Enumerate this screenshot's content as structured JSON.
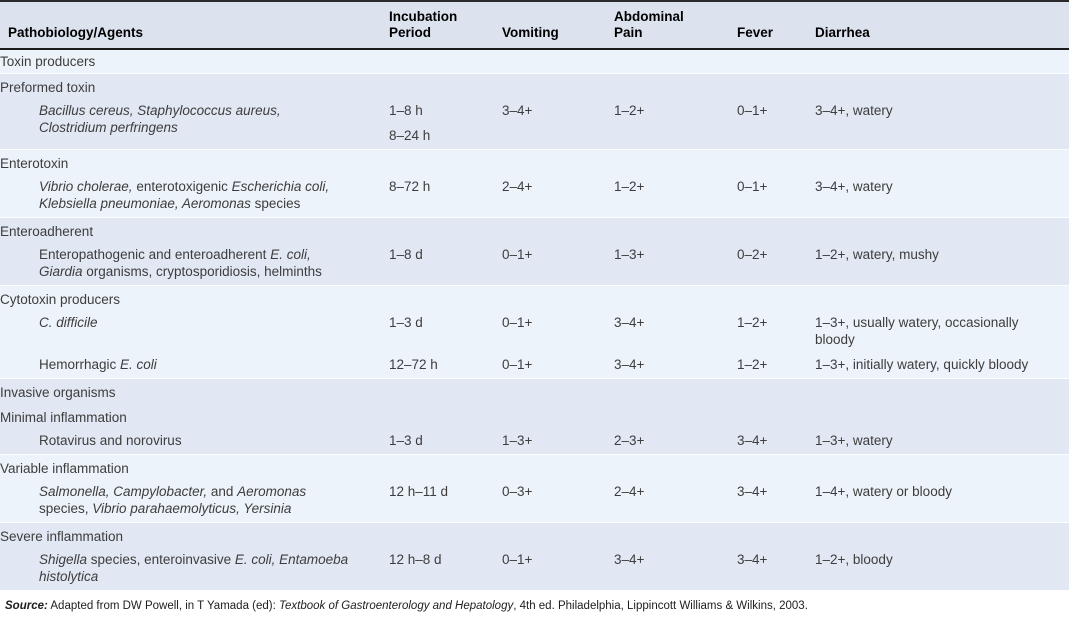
{
  "colors": {
    "band_light": "#edf3fa",
    "band_dark": "#e1e7f3",
    "header_bg": "#dce3ef",
    "rule": "#1b1b1b",
    "text": "#3d3d3d"
  },
  "columns": [
    {
      "key": "agent",
      "label": "Pathobiology/Agents"
    },
    {
      "key": "incubation",
      "label": "Incubation\nPeriod"
    },
    {
      "key": "vomiting",
      "label": "Vomiting"
    },
    {
      "key": "abdominal_pain",
      "label": "Abdominal\nPain"
    },
    {
      "key": "fever",
      "label": "Fever"
    },
    {
      "key": "diarrhea",
      "label": "Diarrhea"
    }
  ],
  "rows": [
    {
      "kind": "section",
      "level": 0,
      "band": "light",
      "band_start": true,
      "label": "Toxin producers"
    },
    {
      "kind": "section",
      "level": 1,
      "band": "dark",
      "band_start": true,
      "label": "Preformed toxin"
    },
    {
      "kind": "agent",
      "level": 2,
      "band": "dark",
      "band_start": false,
      "agent": [
        {
          "i": true,
          "t": "Bacillus cereus, Staphylococcus aureus,"
        },
        {
          "br": true
        },
        {
          "i": true,
          "t": "Clostridium perfringens"
        }
      ],
      "incubation": [
        "1–8 h",
        "8–24 h"
      ],
      "vomiting": "3–4+",
      "abdominal_pain": "1–2+",
      "fever": "0–1+",
      "diarrhea": "3–4+, watery"
    },
    {
      "kind": "section",
      "level": 1,
      "band": "light",
      "band_start": true,
      "label": "Enterotoxin"
    },
    {
      "kind": "agent",
      "level": 2,
      "band": "light",
      "band_start": false,
      "agent": [
        {
          "i": true,
          "t": "Vibrio cholerae,"
        },
        {
          "t": " enterotoxigenic "
        },
        {
          "i": true,
          "t": "Escherichia coli,"
        },
        {
          "br": true
        },
        {
          "i": true,
          "t": "Klebsiella pneumoniae, Aeromonas"
        },
        {
          "t": " species"
        }
      ],
      "incubation": [
        "8–72 h"
      ],
      "vomiting": "2–4+",
      "abdominal_pain": "1–2+",
      "fever": "0–1+",
      "diarrhea": "3–4+, watery"
    },
    {
      "kind": "section",
      "level": 1,
      "band": "dark",
      "band_start": true,
      "label": "Enteroadherent"
    },
    {
      "kind": "agent",
      "level": 2,
      "band": "dark",
      "band_start": false,
      "agent": [
        {
          "t": "Enteropathogenic and enteroadherent "
        },
        {
          "i": true,
          "t": "E. coli,"
        },
        {
          "br": true
        },
        {
          "i": true,
          "t": "Giardia"
        },
        {
          "t": " organisms, cryptosporidiosis, helminths"
        }
      ],
      "incubation": [
        "1–8 d"
      ],
      "vomiting": "0–1+",
      "abdominal_pain": "1–3+",
      "fever": "0–2+",
      "diarrhea": "1–2+, watery, mushy"
    },
    {
      "kind": "section",
      "level": 1,
      "band": "light",
      "band_start": true,
      "label": "Cytotoxin producers"
    },
    {
      "kind": "agent",
      "level": 2,
      "band": "light",
      "band_start": false,
      "agent": [
        {
          "i": true,
          "t": "C. difficile"
        }
      ],
      "incubation": [
        "1–3 d"
      ],
      "vomiting": "0–1+",
      "abdominal_pain": "3–4+",
      "fever": "1–2+",
      "diarrhea": "1–3+, usually watery, occasionally\nbloody"
    },
    {
      "kind": "agent",
      "level": 2,
      "band": "light",
      "band_start": false,
      "agent": [
        {
          "t": "Hemorrhagic "
        },
        {
          "i": true,
          "t": "E. coli"
        }
      ],
      "incubation": [
        "12–72 h"
      ],
      "vomiting": "0–1+",
      "abdominal_pain": "3–4+",
      "fever": "1–2+",
      "diarrhea": "1–3+, initially watery, quickly bloody"
    },
    {
      "kind": "section",
      "level": 1,
      "band": "dark",
      "band_start": true,
      "label": "Invasive organisms"
    },
    {
      "kind": "section",
      "level": 2,
      "band": "dark",
      "band_start": false,
      "label": "Minimal inflammation"
    },
    {
      "kind": "agent",
      "level": 2,
      "band": "dark",
      "band_start": false,
      "agent": [
        {
          "t": "Rotavirus and norovirus"
        }
      ],
      "incubation": [
        "1–3 d"
      ],
      "vomiting": "1–3+",
      "abdominal_pain": "2–3+",
      "fever": "3–4+",
      "diarrhea": "1–3+, watery"
    },
    {
      "kind": "section",
      "level": 1,
      "band": "light",
      "band_start": true,
      "label": "Variable inflammation"
    },
    {
      "kind": "agent",
      "level": 2,
      "band": "light",
      "band_start": false,
      "agent": [
        {
          "i": true,
          "t": "Salmonella, Campylobacter,"
        },
        {
          "t": " and "
        },
        {
          "i": true,
          "t": "Aeromonas"
        },
        {
          "br": true
        },
        {
          "t": "species, "
        },
        {
          "i": true,
          "t": "Vibrio parahaemolyticus, Yersinia"
        }
      ],
      "incubation": [
        "12 h–11 d"
      ],
      "vomiting": "0–3+",
      "abdominal_pain": "2–4+",
      "fever": "3–4+",
      "diarrhea": "1–4+, watery or bloody"
    },
    {
      "kind": "section",
      "level": 1,
      "band": "dark",
      "band_start": true,
      "label": "Severe inflammation"
    },
    {
      "kind": "agent",
      "level": 2,
      "band": "dark",
      "band_start": false,
      "agent": [
        {
          "i": true,
          "t": "Shigella"
        },
        {
          "t": " species, enteroinvasive "
        },
        {
          "i": true,
          "t": "E. coli, Entamoeba"
        },
        {
          "br": true
        },
        {
          "i": true,
          "t": "histolytica"
        }
      ],
      "incubation": [
        "12 h–8 d"
      ],
      "vomiting": "0–1+",
      "abdominal_pain": "3–4+",
      "fever": "3–4+",
      "diarrhea": "1–2+, bloody"
    }
  ],
  "source": {
    "segments": [
      {
        "bi": true,
        "t": "Source:"
      },
      {
        "t": " Adapted from DW Powell, in T Yamada (ed): "
      },
      {
        "i": true,
        "t": "Textbook of Gastroenterology and Hepatology"
      },
      {
        "t": ", 4th ed. Philadelphia, Lippincott Williams & Wilkins, 2003."
      }
    ]
  }
}
